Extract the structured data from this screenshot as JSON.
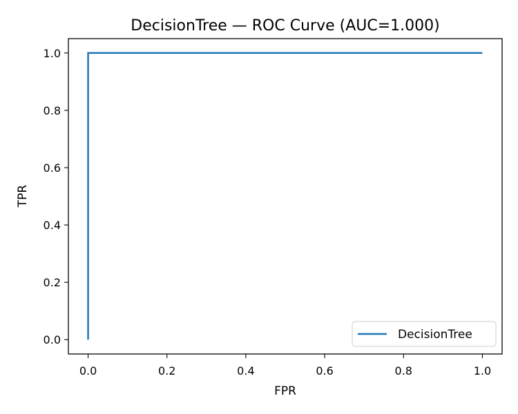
{
  "chart_data": {
    "type": "line",
    "title": "DecisionTree — ROC Curve (AUC=1.000)",
    "xlabel": "FPR",
    "ylabel": "TPR",
    "xlim": [
      -0.05,
      1.05
    ],
    "ylim": [
      -0.05,
      1.05
    ],
    "xticks": [
      0.0,
      0.2,
      0.4,
      0.6,
      0.8,
      1.0
    ],
    "yticks": [
      0.0,
      0.2,
      0.4,
      0.6,
      0.8,
      1.0
    ],
    "xtick_labels": [
      "0.0",
      "0.2",
      "0.4",
      "0.6",
      "0.8",
      "1.0"
    ],
    "ytick_labels": [
      "0.0",
      "0.2",
      "0.4",
      "0.6",
      "0.8",
      "1.0"
    ],
    "grid": false,
    "legend_position": "lower-right",
    "series": [
      {
        "name": "DecisionTree",
        "color": "#1f77b4",
        "x": [
          0.0,
          0.0,
          1.0
        ],
        "y": [
          0.0,
          1.0,
          1.0
        ]
      }
    ]
  }
}
